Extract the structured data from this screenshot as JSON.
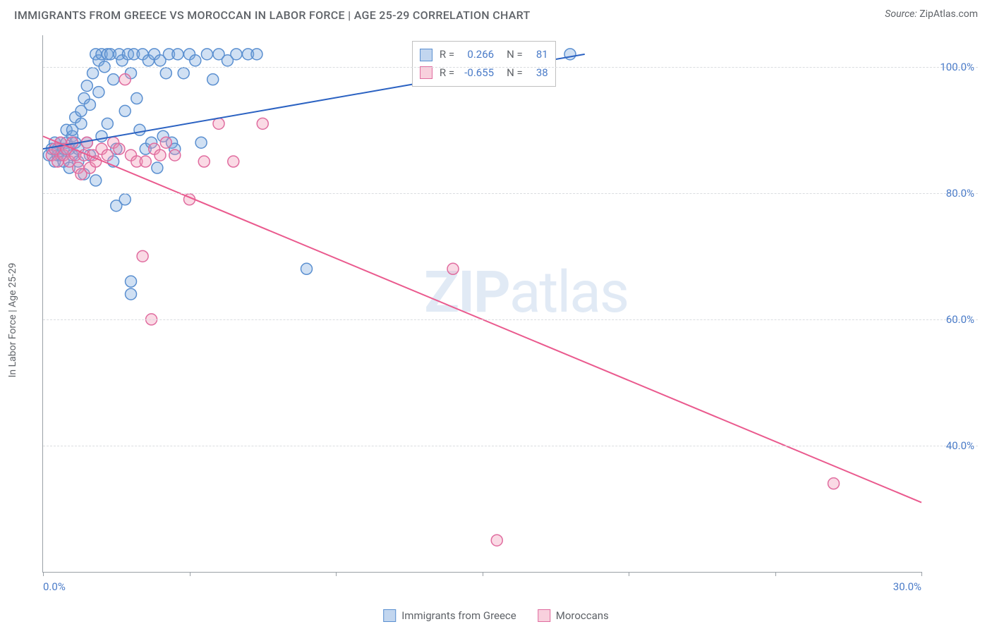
{
  "title": "IMMIGRANTS FROM GREECE VS MOROCCAN IN LABOR FORCE | AGE 25-29 CORRELATION CHART",
  "source_label": "Source:",
  "source_value": "ZipAtlas.com",
  "y_axis_label": "In Labor Force | Age 25-29",
  "watermark_a": "ZIP",
  "watermark_b": "atlas",
  "chart": {
    "type": "scatter",
    "xlim": [
      0,
      30
    ],
    "ylim": [
      20,
      105
    ],
    "x_ticks": [
      0,
      5,
      10,
      15,
      20,
      25,
      30
    ],
    "x_tick_labels": [
      "0.0%",
      "",
      "",
      "",
      "",
      "",
      "30.0%"
    ],
    "y_ticks": [
      40,
      60,
      80,
      100
    ],
    "y_tick_labels": [
      "40.0%",
      "60.0%",
      "80.0%",
      "100.0%"
    ],
    "grid_color": "#dadce0",
    "axis_color": "#9aa0a6",
    "background_color": "#ffffff",
    "marker_radius": 8,
    "marker_stroke_width": 1.5,
    "line_width": 2,
    "series": [
      {
        "name": "Immigrants from Greece",
        "fill": "rgba(120,165,220,0.35)",
        "stroke": "#5a8fd0",
        "swatch_fill": "rgba(120,165,220,0.45)",
        "swatch_border": "#5a8fd0",
        "R": "0.266",
        "N": "81",
        "trend": {
          "x1": 0,
          "y1": 87,
          "x2": 18.5,
          "y2": 102,
          "color": "#2b62c2"
        },
        "points": [
          [
            0.2,
            86
          ],
          [
            0.3,
            87
          ],
          [
            0.4,
            85
          ],
          [
            0.4,
            88
          ],
          [
            0.5,
            87
          ],
          [
            0.5,
            86
          ],
          [
            0.6,
            88
          ],
          [
            0.6,
            86
          ],
          [
            0.7,
            87
          ],
          [
            0.7,
            85
          ],
          [
            0.8,
            88
          ],
          [
            0.8,
            90
          ],
          [
            0.9,
            87
          ],
          [
            0.9,
            84
          ],
          [
            1.0,
            86
          ],
          [
            1.0,
            89
          ],
          [
            1.0,
            90
          ],
          [
            1.1,
            88
          ],
          [
            1.1,
            92
          ],
          [
            1.2,
            87
          ],
          [
            1.2,
            85
          ],
          [
            1.3,
            91
          ],
          [
            1.3,
            93
          ],
          [
            1.4,
            95
          ],
          [
            1.4,
            83
          ],
          [
            1.5,
            97
          ],
          [
            1.5,
            88
          ],
          [
            1.6,
            94
          ],
          [
            1.6,
            86
          ],
          [
            1.7,
            99
          ],
          [
            1.8,
            102
          ],
          [
            1.8,
            82
          ],
          [
            1.9,
            101
          ],
          [
            1.9,
            96
          ],
          [
            2.0,
            102
          ],
          [
            2.0,
            89
          ],
          [
            2.1,
            100
          ],
          [
            2.2,
            102
          ],
          [
            2.2,
            91
          ],
          [
            2.3,
            102
          ],
          [
            2.4,
            98
          ],
          [
            2.4,
            85
          ],
          [
            2.5,
            87
          ],
          [
            2.5,
            78
          ],
          [
            2.6,
            102
          ],
          [
            2.7,
            101
          ],
          [
            2.8,
            93
          ],
          [
            2.8,
            79
          ],
          [
            2.9,
            102
          ],
          [
            3.0,
            99
          ],
          [
            3.0,
            64
          ],
          [
            3.0,
            66
          ],
          [
            3.1,
            102
          ],
          [
            3.2,
            95
          ],
          [
            3.3,
            90
          ],
          [
            3.4,
            102
          ],
          [
            3.5,
            87
          ],
          [
            3.6,
            101
          ],
          [
            3.7,
            88
          ],
          [
            3.8,
            102
          ],
          [
            3.9,
            84
          ],
          [
            4.0,
            101
          ],
          [
            4.1,
            89
          ],
          [
            4.2,
            99
          ],
          [
            4.3,
            102
          ],
          [
            4.4,
            88
          ],
          [
            4.5,
            87
          ],
          [
            4.6,
            102
          ],
          [
            4.8,
            99
          ],
          [
            5.0,
            102
          ],
          [
            5.2,
            101
          ],
          [
            5.4,
            88
          ],
          [
            5.6,
            102
          ],
          [
            5.8,
            98
          ],
          [
            6.0,
            102
          ],
          [
            6.3,
            101
          ],
          [
            6.6,
            102
          ],
          [
            7.0,
            102
          ],
          [
            7.3,
            102
          ],
          [
            9.0,
            68
          ],
          [
            18.0,
            102
          ]
        ]
      },
      {
        "name": "Moroccans",
        "fill": "rgba(240,150,180,0.35)",
        "stroke": "#e06c9f",
        "swatch_fill": "rgba(240,150,180,0.45)",
        "swatch_border": "#e06c9f",
        "R": "-0.655",
        "N": "38",
        "trend": {
          "x1": 0,
          "y1": 89,
          "x2": 30,
          "y2": 31,
          "color": "#ea5a8e"
        },
        "points": [
          [
            0.3,
            86
          ],
          [
            0.4,
            87
          ],
          [
            0.5,
            85
          ],
          [
            0.6,
            88
          ],
          [
            0.7,
            86
          ],
          [
            0.8,
            87
          ],
          [
            0.9,
            85
          ],
          [
            1.0,
            88
          ],
          [
            1.1,
            86
          ],
          [
            1.2,
            84
          ],
          [
            1.3,
            83
          ],
          [
            1.4,
            86
          ],
          [
            1.5,
            88
          ],
          [
            1.6,
            84
          ],
          [
            1.7,
            86
          ],
          [
            1.8,
            85
          ],
          [
            2.0,
            87
          ],
          [
            2.2,
            86
          ],
          [
            2.4,
            88
          ],
          [
            2.6,
            87
          ],
          [
            2.8,
            98
          ],
          [
            3.0,
            86
          ],
          [
            3.2,
            85
          ],
          [
            3.4,
            70
          ],
          [
            3.5,
            85
          ],
          [
            3.7,
            60
          ],
          [
            3.8,
            87
          ],
          [
            4.0,
            86
          ],
          [
            4.2,
            88
          ],
          [
            4.5,
            86
          ],
          [
            5.0,
            79
          ],
          [
            5.5,
            85
          ],
          [
            6.0,
            91
          ],
          [
            6.5,
            85
          ],
          [
            7.5,
            91
          ],
          [
            14.0,
            68
          ],
          [
            15.5,
            25
          ],
          [
            27.0,
            34
          ]
        ]
      }
    ]
  },
  "stats_box": {
    "R_label": "R =",
    "N_label": "N ="
  },
  "legend": {
    "items": [
      {
        "label": "Immigrants from Greece",
        "fill": "rgba(120,165,220,0.45)",
        "border": "#5a8fd0"
      },
      {
        "label": "Moroccans",
        "fill": "rgba(240,150,180,0.45)",
        "border": "#e06c9f"
      }
    ]
  }
}
